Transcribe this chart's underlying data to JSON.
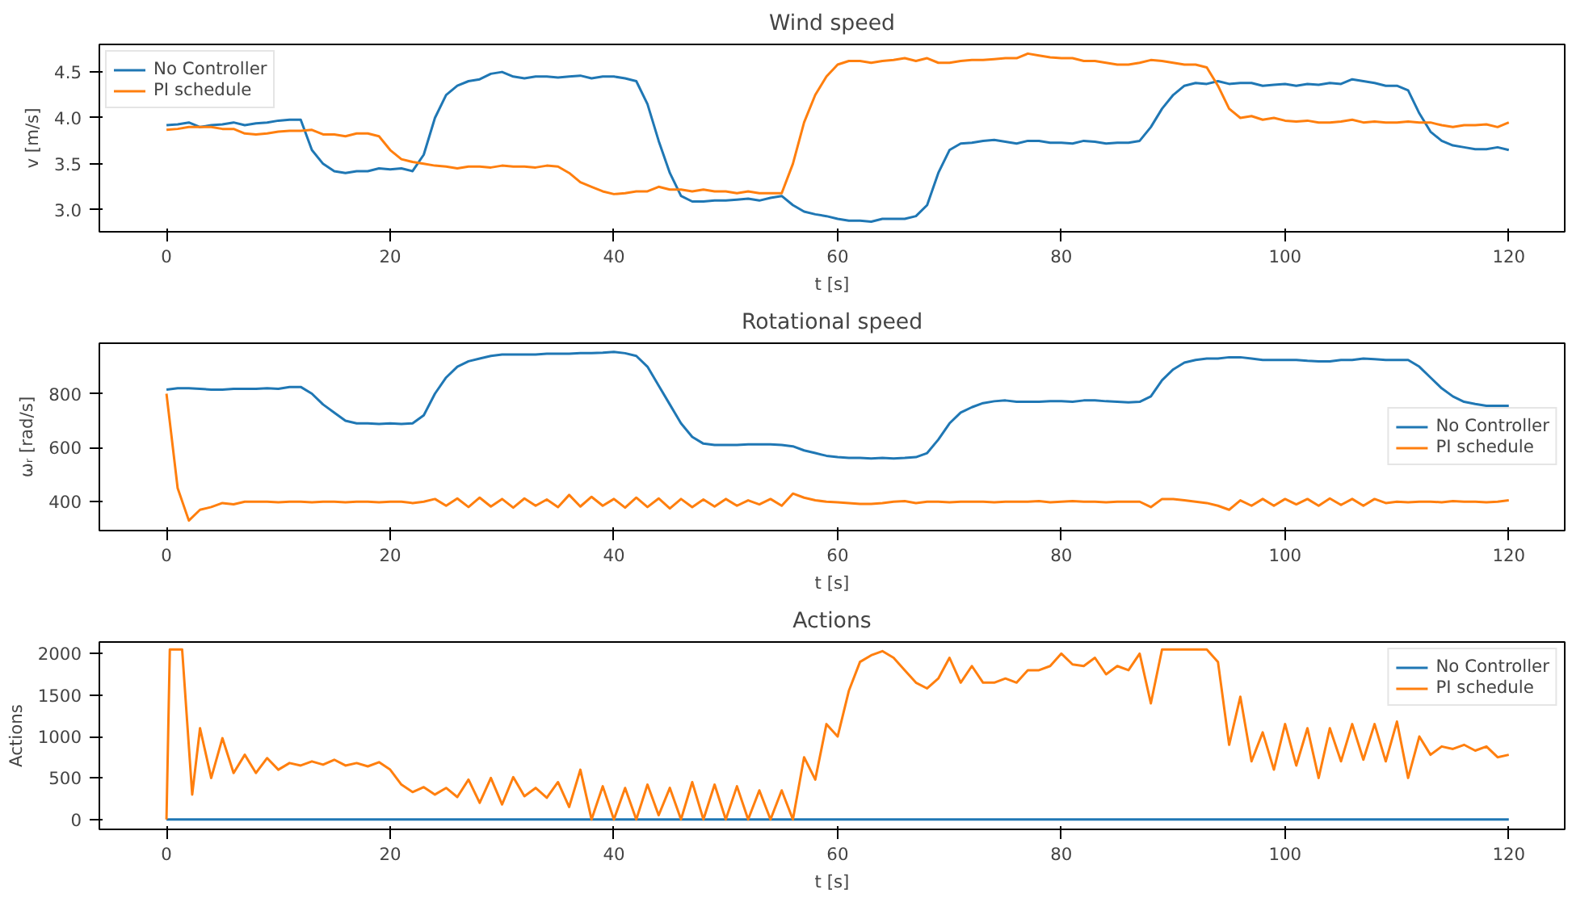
{
  "chart_data": [
    {
      "type": "line",
      "title": "Wind speed",
      "xlabel": "t [s]",
      "ylabel": "v [m/s]",
      "xlim": [
        -6,
        125
      ],
      "ylim": [
        2.76,
        4.8
      ],
      "xticks": [
        0,
        20,
        40,
        60,
        80,
        100,
        120
      ],
      "yticks": [
        {
          "value": 3,
          "label": "3.0"
        },
        {
          "value": 3.5,
          "label": "3.5"
        },
        {
          "value": 4,
          "label": "4.0"
        },
        {
          "value": 4.5,
          "label": "4.5"
        }
      ],
      "grid": false,
      "legend": "top left",
      "x": [
        0,
        1,
        2,
        3,
        4,
        5,
        6,
        7,
        8,
        9,
        10,
        11,
        12,
        13,
        14,
        15,
        16,
        17,
        18,
        19,
        20,
        21,
        22,
        23,
        24,
        25,
        26,
        27,
        28,
        29,
        30,
        31,
        32,
        33,
        34,
        35,
        36,
        37,
        38,
        39,
        40,
        41,
        42,
        43,
        44,
        45,
        46,
        47,
        48,
        49,
        50,
        51,
        52,
        53,
        54,
        55,
        56,
        57,
        58,
        59,
        60,
        61,
        62,
        63,
        64,
        65,
        66,
        67,
        68,
        69,
        70,
        71,
        72,
        73,
        74,
        75,
        76,
        77,
        78,
        79,
        80,
        81,
        82,
        83,
        84,
        85,
        86,
        87,
        88,
        89,
        90,
        91,
        92,
        93,
        94,
        95,
        96,
        97,
        98,
        99,
        100,
        101,
        102,
        103,
        104,
        105,
        106,
        107,
        108,
        109,
        110,
        111,
        112,
        113,
        114,
        115,
        116,
        117,
        118,
        119,
        120
      ],
      "series": [
        {
          "name": "No Controller",
          "color": "#1f77b4",
          "values": [
            3.92,
            3.93,
            3.95,
            3.9,
            3.92,
            3.93,
            3.95,
            3.92,
            3.94,
            3.95,
            3.97,
            3.98,
            3.98,
            3.65,
            3.5,
            3.42,
            3.4,
            3.42,
            3.42,
            3.45,
            3.44,
            3.45,
            3.42,
            3.6,
            4.0,
            4.25,
            4.35,
            4.4,
            4.42,
            4.48,
            4.5,
            4.45,
            4.43,
            4.45,
            4.45,
            4.44,
            4.45,
            4.46,
            4.43,
            4.45,
            4.45,
            4.43,
            4.4,
            4.15,
            3.75,
            3.4,
            3.15,
            3.09,
            3.09,
            3.1,
            3.1,
            3.11,
            3.12,
            3.1,
            3.13,
            3.15,
            3.05,
            2.98,
            2.95,
            2.93,
            2.9,
            2.88,
            2.88,
            2.87,
            2.9,
            2.9,
            2.9,
            2.93,
            3.05,
            3.4,
            3.65,
            3.72,
            3.73,
            3.75,
            3.76,
            3.74,
            3.72,
            3.75,
            3.75,
            3.73,
            3.73,
            3.72,
            3.75,
            3.74,
            3.72,
            3.73,
            3.73,
            3.75,
            3.9,
            4.1,
            4.25,
            4.35,
            4.38,
            4.37,
            4.4,
            4.37,
            4.38,
            4.38,
            4.35,
            4.36,
            4.37,
            4.35,
            4.37,
            4.36,
            4.38,
            4.37,
            4.42,
            4.4,
            4.38,
            4.35,
            4.35,
            4.3,
            4.05,
            3.85,
            3.75,
            3.7,
            3.68,
            3.66,
            3.66,
            3.68,
            3.65
          ]
        },
        {
          "name": "PI schedule",
          "color": "#ff7f0e",
          "values": [
            3.87,
            3.88,
            3.9,
            3.9,
            3.9,
            3.88,
            3.88,
            3.83,
            3.82,
            3.83,
            3.85,
            3.86,
            3.86,
            3.87,
            3.82,
            3.82,
            3.8,
            3.83,
            3.83,
            3.8,
            3.65,
            3.55,
            3.52,
            3.5,
            3.48,
            3.47,
            3.45,
            3.47,
            3.47,
            3.46,
            3.48,
            3.47,
            3.47,
            3.46,
            3.48,
            3.47,
            3.4,
            3.3,
            3.25,
            3.2,
            3.17,
            3.18,
            3.2,
            3.2,
            3.25,
            3.22,
            3.22,
            3.2,
            3.22,
            3.2,
            3.2,
            3.18,
            3.2,
            3.18,
            3.18,
            3.18,
            3.5,
            3.95,
            4.25,
            4.45,
            4.58,
            4.62,
            4.62,
            4.6,
            4.62,
            4.63,
            4.65,
            4.62,
            4.65,
            4.6,
            4.6,
            4.62,
            4.63,
            4.63,
            4.64,
            4.65,
            4.65,
            4.7,
            4.68,
            4.66,
            4.65,
            4.65,
            4.62,
            4.62,
            4.6,
            4.58,
            4.58,
            4.6,
            4.63,
            4.62,
            4.6,
            4.58,
            4.58,
            4.55,
            4.35,
            4.1,
            4.0,
            4.02,
            3.98,
            4.0,
            3.97,
            3.96,
            3.97,
            3.95,
            3.95,
            3.96,
            3.98,
            3.95,
            3.96,
            3.95,
            3.95,
            3.96,
            3.95,
            3.95,
            3.92,
            3.9,
            3.92,
            3.92,
            3.93,
            3.9,
            3.95
          ]
        }
      ]
    },
    {
      "type": "line",
      "title": "Rotational speed",
      "xlabel": "t [s]",
      "ylabel": "ωᵣ [rad/s]",
      "xlim": [
        -6,
        125
      ],
      "ylim": [
        293,
        987
      ],
      "xticks": [
        0,
        20,
        40,
        60,
        80,
        100,
        120
      ],
      "yticks": [
        400,
        600,
        800
      ],
      "grid": false,
      "legend": "right",
      "x": [
        0,
        1,
        2,
        3,
        4,
        5,
        6,
        7,
        8,
        9,
        10,
        11,
        12,
        13,
        14,
        15,
        16,
        17,
        18,
        19,
        20,
        21,
        22,
        23,
        24,
        25,
        26,
        27,
        28,
        29,
        30,
        31,
        32,
        33,
        34,
        35,
        36,
        37,
        38,
        39,
        40,
        41,
        42,
        43,
        44,
        45,
        46,
        47,
        48,
        49,
        50,
        51,
        52,
        53,
        54,
        55,
        56,
        57,
        58,
        59,
        60,
        61,
        62,
        63,
        64,
        65,
        66,
        67,
        68,
        69,
        70,
        71,
        72,
        73,
        74,
        75,
        76,
        77,
        78,
        79,
        80,
        81,
        82,
        83,
        84,
        85,
        86,
        87,
        88,
        89,
        90,
        91,
        92,
        93,
        94,
        95,
        96,
        97,
        98,
        99,
        100,
        101,
        102,
        103,
        104,
        105,
        106,
        107,
        108,
        109,
        110,
        111,
        112,
        113,
        114,
        115,
        116,
        117,
        118,
        119,
        120
      ],
      "series": [
        {
          "name": "No Controller",
          "color": "#1f77b4",
          "values": [
            815,
            820,
            820,
            818,
            815,
            815,
            818,
            818,
            818,
            820,
            818,
            825,
            825,
            800,
            760,
            730,
            700,
            690,
            690,
            688,
            690,
            688,
            690,
            720,
            800,
            860,
            900,
            920,
            930,
            940,
            945,
            945,
            945,
            945,
            948,
            948,
            948,
            950,
            950,
            952,
            955,
            950,
            940,
            900,
            830,
            760,
            690,
            640,
            615,
            610,
            610,
            610,
            612,
            612,
            612,
            610,
            605,
            590,
            580,
            570,
            565,
            562,
            562,
            560,
            562,
            560,
            562,
            565,
            580,
            630,
            690,
            730,
            750,
            765,
            772,
            775,
            770,
            770,
            770,
            772,
            772,
            770,
            775,
            775,
            772,
            770,
            768,
            770,
            790,
            850,
            890,
            915,
            925,
            930,
            930,
            935,
            935,
            930,
            925,
            925,
            925,
            925,
            922,
            920,
            920,
            925,
            925,
            930,
            928,
            925,
            925,
            925,
            900,
            860,
            820,
            790,
            770,
            762,
            755,
            755,
            755
          ]
        },
        {
          "name": "PI schedule",
          "color": "#ff7f0e",
          "values": [
            800,
            450,
            330,
            370,
            380,
            395,
            390,
            400,
            400,
            400,
            398,
            400,
            400,
            398,
            400,
            400,
            398,
            400,
            400,
            398,
            400,
            400,
            395,
            400,
            410,
            385,
            412,
            380,
            415,
            382,
            410,
            378,
            412,
            385,
            408,
            380,
            425,
            382,
            418,
            385,
            410,
            378,
            415,
            380,
            412,
            375,
            410,
            380,
            408,
            382,
            410,
            385,
            405,
            390,
            410,
            385,
            430,
            415,
            405,
            400,
            398,
            395,
            392,
            392,
            395,
            400,
            402,
            395,
            400,
            400,
            398,
            400,
            400,
            400,
            398,
            400,
            400,
            400,
            402,
            398,
            400,
            402,
            400,
            400,
            398,
            400,
            400,
            400,
            380,
            410,
            410,
            405,
            400,
            395,
            385,
            370,
            405,
            385,
            410,
            385,
            410,
            390,
            410,
            385,
            412,
            388,
            410,
            385,
            410,
            395,
            400,
            398,
            400,
            400,
            398,
            402,
            400,
            400,
            398,
            400,
            405
          ]
        }
      ]
    },
    {
      "type": "line",
      "title": "Actions",
      "xlabel": "t [s]",
      "ylabel": "Actions",
      "xlim": [
        -6,
        125
      ],
      "ylim": [
        -120,
        2140
      ],
      "xticks": [
        0,
        20,
        40,
        60,
        80,
        100,
        120
      ],
      "yticks": [
        0,
        500,
        1000,
        1500,
        2000
      ],
      "grid": false,
      "legend": "top right",
      "series": [
        {
          "name": "No Controller",
          "color": "#1f77b4",
          "x": [
            0,
            120
          ],
          "values": [
            0,
            0
          ]
        },
        {
          "name": "PI schedule",
          "color": "#ff7f0e",
          "x": [
            0,
            0.3,
            1.4,
            2.3,
            3,
            4,
            5,
            6,
            7,
            8,
            9,
            10,
            11,
            12,
            13,
            14,
            15,
            16,
            17,
            18,
            19,
            20,
            21,
            22,
            23,
            24,
            25,
            26,
            27,
            28,
            29,
            30,
            31,
            32,
            33,
            34,
            35,
            36,
            37,
            38,
            39,
            40,
            41,
            42,
            43,
            44,
            45,
            46,
            47,
            48,
            49,
            50,
            51,
            52,
            53,
            54,
            55,
            56,
            57,
            58,
            59,
            60,
            61,
            62,
            63,
            64,
            65,
            66,
            67,
            68,
            69,
            70,
            71,
            72,
            73,
            74,
            75,
            76,
            77,
            78,
            79,
            80,
            81,
            82,
            83,
            84,
            85,
            86,
            87,
            88,
            89,
            90,
            91,
            92,
            93,
            94,
            95,
            96,
            97,
            98,
            99,
            100,
            101,
            102,
            103,
            104,
            105,
            106,
            107,
            108,
            109,
            110,
            111,
            112,
            113,
            114,
            115,
            116,
            117,
            118,
            119,
            120
          ],
          "values": [
            0,
            2050,
            2050,
            300,
            1100,
            500,
            980,
            560,
            780,
            560,
            740,
            600,
            680,
            650,
            700,
            660,
            720,
            650,
            680,
            640,
            690,
            600,
            420,
            330,
            390,
            300,
            380,
            270,
            480,
            200,
            500,
            180,
            510,
            280,
            380,
            260,
            450,
            150,
            600,
            0,
            400,
            0,
            380,
            0,
            420,
            50,
            380,
            0,
            450,
            0,
            420,
            0,
            400,
            0,
            350,
            0,
            350,
            0,
            750,
            480,
            1150,
            1000,
            1550,
            1900,
            1980,
            2030,
            1950,
            1800,
            1650,
            1580,
            1700,
            1950,
            1650,
            1850,
            1650,
            1650,
            1700,
            1650,
            1800,
            1800,
            1850,
            2000,
            1870,
            1850,
            1950,
            1750,
            1850,
            1800,
            2000,
            1400,
            2050,
            2050,
            2050,
            2050,
            2050,
            1900,
            900,
            1480,
            700,
            1050,
            600,
            1150,
            650,
            1100,
            500,
            1100,
            700,
            1150,
            720,
            1150,
            700,
            1180,
            500,
            1000,
            780,
            880,
            850,
            900,
            830,
            880,
            750,
            780
          ]
        }
      ]
    }
  ]
}
